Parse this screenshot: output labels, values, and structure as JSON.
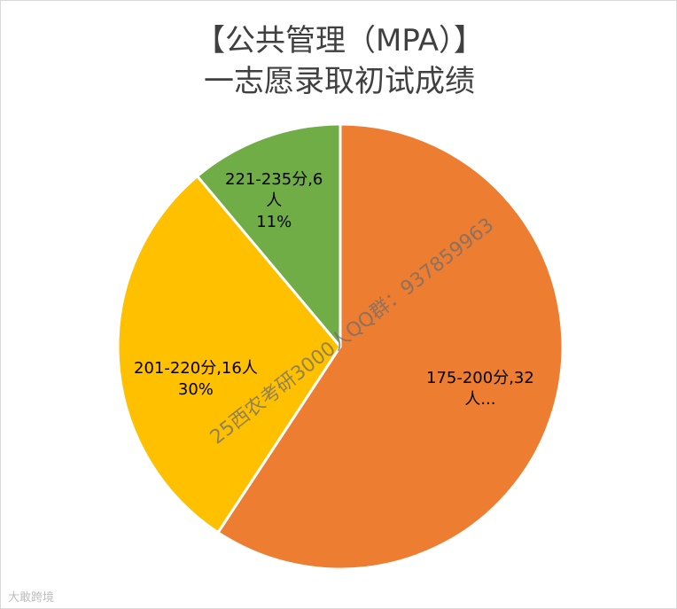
{
  "chart_data": {
    "type": "pie",
    "title": [
      "【公共管理（MPA）】",
      "一志愿录取初试成绩"
    ],
    "slices": [
      {
        "category": "175-200分",
        "value": 32,
        "unit": "人",
        "label_lines": [
          "175-200分,32",
          "人..."
        ],
        "color": "#ED7D31"
      },
      {
        "category": "201-220分",
        "value": 16,
        "unit": "人",
        "percent": "30%",
        "label_lines": [
          "201-220分,16人",
          "30%"
        ],
        "color": "#FFC000"
      },
      {
        "category": "221-235分",
        "value": 6,
        "unit": "人",
        "percent": "11%",
        "label_lines": [
          "221-235分,6",
          "人",
          "11%"
        ],
        "color": "#70AD47"
      }
    ],
    "legend": "none"
  },
  "watermark": "25西农考研3000人QQ群：937859963",
  "corner_logo": "大敢跨境"
}
